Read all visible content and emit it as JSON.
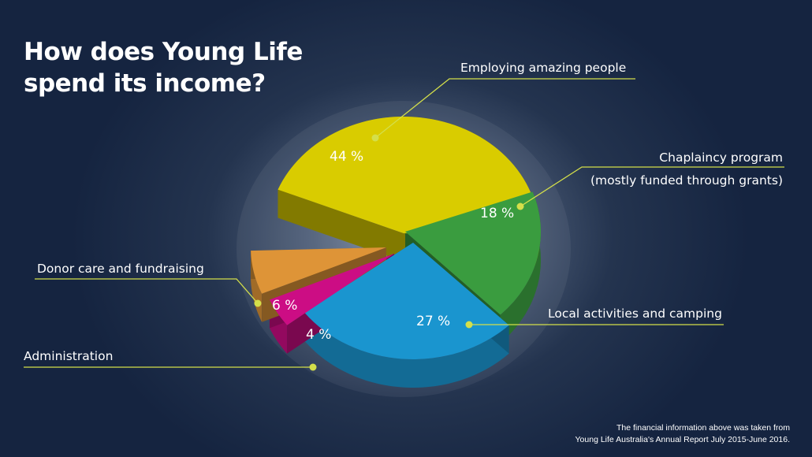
{
  "title_line1": "How does Young Life",
  "title_line2": "spend its income?",
  "footnote_line1": "The financial information above was taken from",
  "footnote_line2": "Young Life Australia's Annual Report July 2015-June 2016.",
  "chart_data": {
    "type": "pie",
    "title": "How does Young Life spend its income?",
    "slices": [
      {
        "label": "Employing amazing people",
        "value": 44,
        "value_label": "44 %",
        "color": "#d9cc00"
      },
      {
        "label": "Chaplaincy program (mostly funded through grants)",
        "label_line1": "Chaplaincy program",
        "label_line2": "(mostly funded through grants)",
        "value": 18,
        "value_label": "18 %",
        "color": "#3a9c3f"
      },
      {
        "label": "Local activities and camping",
        "value": 27,
        "value_label": "27 %",
        "color": "#1a95cf"
      },
      {
        "label": "Administration",
        "value": 4,
        "value_label": "4 %",
        "color": "#cc0d84"
      },
      {
        "label": "Donor care and fundraising",
        "value": 6,
        "value_label": "6 %",
        "color": "#de9437"
      }
    ],
    "leader_color": "#d4df4a"
  }
}
